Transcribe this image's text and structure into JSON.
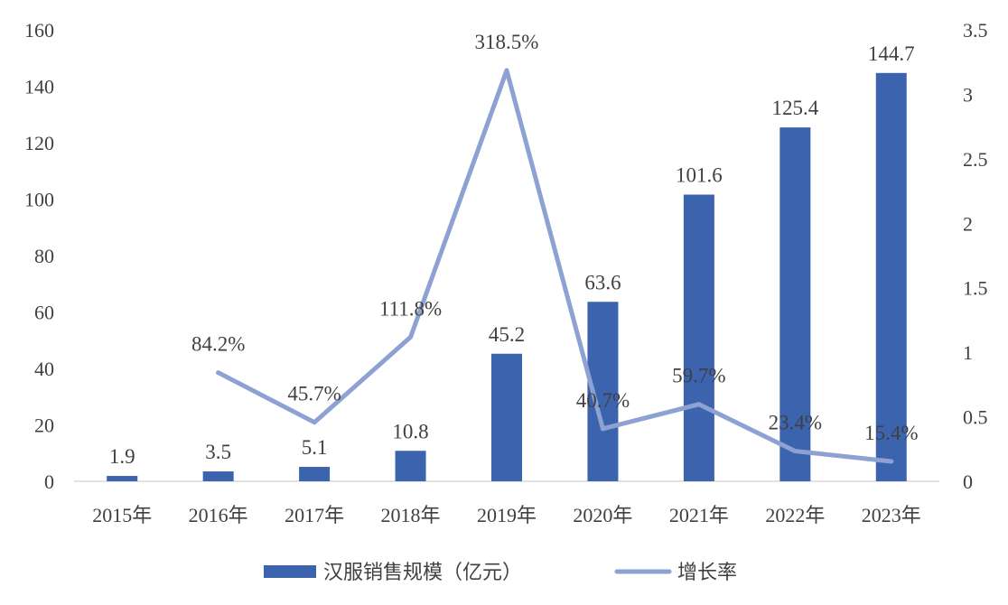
{
  "chart_data": {
    "type": "bar",
    "categories": [
      "2015年",
      "2016年",
      "2017年",
      "2018年",
      "2019年",
      "2020年",
      "2021年",
      "2022年",
      "2023年"
    ],
    "series": [
      {
        "name": "汉服销售规模（亿元）",
        "type": "bar",
        "axis": "left",
        "values": [
          1.9,
          3.5,
          5.1,
          10.8,
          45.2,
          63.6,
          101.6,
          125.4,
          144.7
        ],
        "labels": [
          "1.9",
          "3.5",
          "5.1",
          "10.8",
          "45.2",
          "63.6",
          "101.6",
          "125.4",
          "144.7"
        ]
      },
      {
        "name": "增长率",
        "type": "line",
        "axis": "right",
        "values": [
          null,
          0.842,
          0.457,
          1.118,
          3.185,
          0.407,
          0.597,
          0.234,
          0.154
        ],
        "labels": [
          "",
          "84.2%",
          "45.7%",
          "111.8%",
          "318.5%",
          "40.7%",
          "59.7%",
          "23.4%",
          "15.4%"
        ]
      }
    ],
    "y_left": {
      "ticks": [
        "0",
        "20",
        "40",
        "60",
        "80",
        "100",
        "120",
        "140",
        "160"
      ],
      "range": [
        0,
        160
      ]
    },
    "y_right": {
      "ticks": [
        "0",
        "0.5",
        "1",
        "1.5",
        "2",
        "2.5",
        "3",
        "3.5"
      ],
      "range": [
        0,
        3.5
      ]
    },
    "grid": false,
    "legend_position": "bottom",
    "colors": {
      "bar": "#3c63ae",
      "line": "#8ea1d3",
      "text": "#404040",
      "axis": "#d9d9d9"
    }
  }
}
